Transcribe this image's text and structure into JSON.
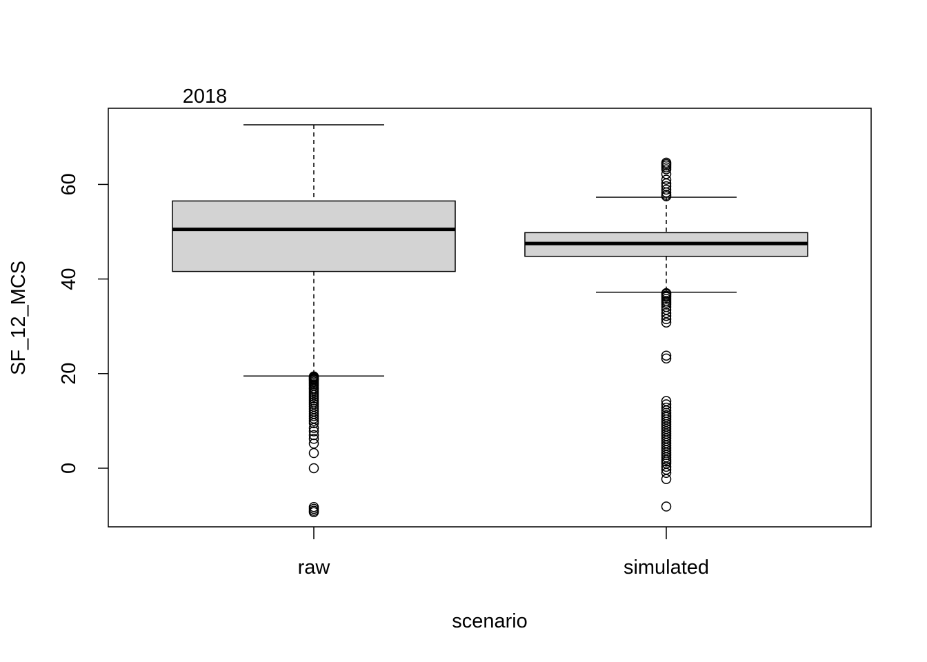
{
  "chart_data": {
    "type": "boxplot",
    "title": "2018",
    "xlabel": "scenario",
    "ylabel": "SF_12_MCS",
    "ylim": [
      -12.4,
      76.1
    ],
    "yticks": [
      0,
      20,
      40,
      60
    ],
    "categories": [
      "raw",
      "simulated"
    ],
    "box_fill": "#d3d3d3",
    "boxes": [
      {
        "name": "raw",
        "whisker_low": 19.5,
        "q1": 41.6,
        "median": 50.5,
        "q3": 56.5,
        "whisker_high": 72.6,
        "outliers": [
          19.4,
          19.2,
          19.0,
          18.8,
          18.6,
          18.3,
          18.0,
          17.7,
          17.4,
          17.0,
          16.7,
          16.3,
          15.9,
          15.5,
          15.1,
          14.7,
          14.3,
          13.9,
          13.5,
          13.0,
          12.5,
          12.0,
          11.5,
          11.0,
          10.5,
          10.0,
          9.5,
          8.5,
          7.8,
          7.0,
          6.2,
          5.2,
          3.2,
          0.0,
          -8.2,
          -8.6,
          -9.0,
          -9.3
        ]
      },
      {
        "name": "simulated",
        "whisker_low": 37.2,
        "q1": 44.8,
        "median": 47.5,
        "q3": 49.8,
        "whisker_high": 57.3,
        "outliers": [
          64.6,
          64.3,
          64.0,
          63.6,
          63.2,
          62.2,
          61.0,
          60.2,
          59.6,
          58.9,
          58.3,
          57.8,
          57.5,
          37.0,
          36.8,
          36.5,
          36.2,
          35.8,
          35.4,
          35.0,
          34.6,
          34.1,
          33.5,
          32.8,
          32.2,
          31.5,
          30.8,
          23.8,
          23.2,
          14.2,
          13.5,
          12.8,
          12.2,
          11.7,
          11.2,
          10.8,
          10.3,
          9.8,
          9.3,
          8.8,
          8.3,
          7.8,
          7.3,
          6.8,
          6.3,
          5.8,
          5.3,
          4.8,
          4.3,
          3.8,
          3.3,
          2.8,
          2.3,
          1.8,
          1.4,
          1.0,
          0.3,
          -0.3,
          -1.0,
          -2.3,
          -8.1
        ]
      }
    ]
  }
}
